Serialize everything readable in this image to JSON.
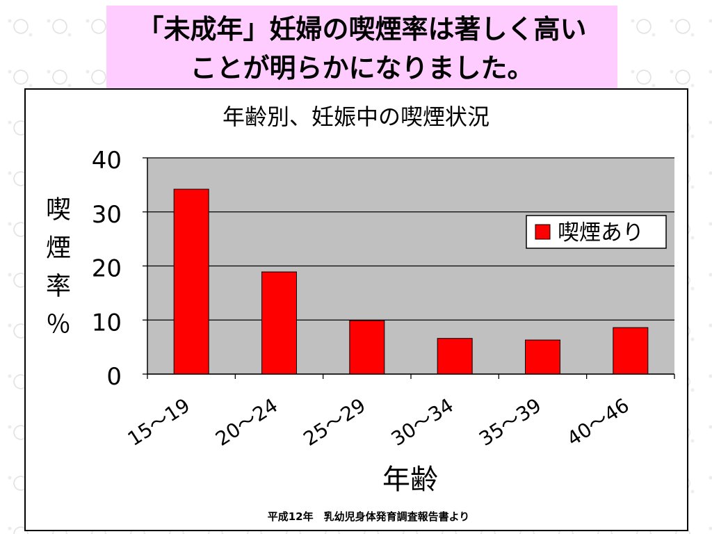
{
  "slide": {
    "title_lines": [
      "「未成年」妊婦の喫煙率は著しく高い",
      "ことが明らかになりました。"
    ],
    "source": "平成12年　乳幼児身体発育調査報告書より"
  },
  "colors": {
    "title_background": "#ffccff",
    "plot_background": "#c0c0c0",
    "bar": "#ff0000"
  },
  "chart_data": {
    "type": "bar",
    "title": "年齢別、妊娠中の喫煙状況",
    "xlabel": "年齢",
    "ylabel": "喫煙率％",
    "categories": [
      "15～19",
      "20～24",
      "25～29",
      "30～34",
      "35～39",
      "40～46"
    ],
    "series": [
      {
        "name": "喫煙あり",
        "values": [
          34.2,
          18.9,
          9.9,
          6.6,
          6.3,
          8.6
        ],
        "color": "#ff0000"
      }
    ],
    "ylim": [
      0,
      40
    ],
    "yticks": [
      0,
      10,
      20,
      30,
      40
    ],
    "grid": true,
    "legend_position": "right"
  }
}
